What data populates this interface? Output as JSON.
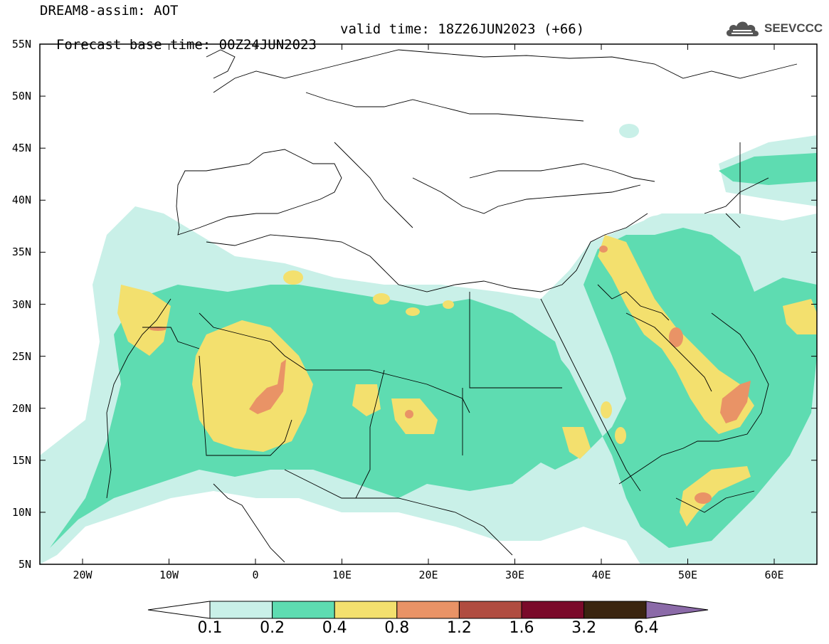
{
  "header": {
    "title": "DREAM8-assim: AOT",
    "base_time": "Forecast base time: 00Z24JUN2023",
    "valid_time": "valid time: 18Z26JUN2023 (+66)"
  },
  "logo": {
    "text": "SEEVCCC",
    "icon": "cloud-icon"
  },
  "map": {
    "lat_labels": [
      "55N",
      "50N",
      "45N",
      "40N",
      "35N",
      "30N",
      "25N",
      "20N",
      "15N",
      "10N",
      "5N"
    ],
    "lon_labels": [
      "20W",
      "10W",
      "0",
      "10E",
      "20E",
      "30E",
      "40E",
      "50E",
      "60E"
    ]
  },
  "colorbar": {
    "labels": [
      "0.1",
      "0.2",
      "0.4",
      "0.8",
      "1.2",
      "1.6",
      "3.2",
      "6.4"
    ],
    "colors": [
      "#c9f0e8",
      "#5edcb1",
      "#f3e06e",
      "#e99366",
      "#b04c40",
      "#7a0a2a",
      "#3a2510",
      "#8b6aa8"
    ]
  },
  "palette": {
    "c1": "#c9f0e8",
    "c2": "#5edcb1",
    "c3": "#f3e06e",
    "c4": "#e99366",
    "c5": "#b04c40"
  }
}
